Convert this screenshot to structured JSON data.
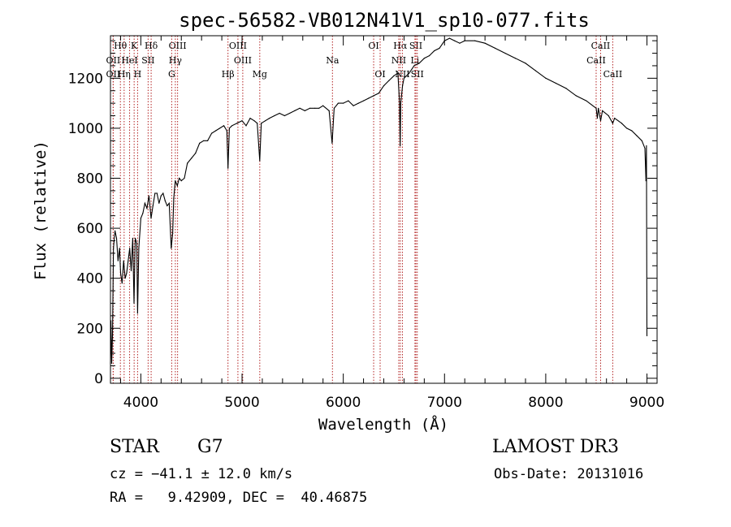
{
  "chart_data": {
    "type": "line",
    "title": "spec-56582-VB012N41V1_sp10-077.fits",
    "xlabel": "Wavelength (Å)",
    "ylabel": "Flux (relative)",
    "xlim": [
      3700,
      9100
    ],
    "ylim": [
      -20,
      1370
    ],
    "xticks": [
      4000,
      5000,
      6000,
      7000,
      8000,
      9000
    ],
    "yticks": [
      0,
      200,
      400,
      600,
      800,
      1000,
      1200
    ],
    "grid": false,
    "series": [
      {
        "name": "spectrum",
        "points": [
          [
            3700,
            60
          ],
          [
            3705,
            230
          ],
          [
            3712,
            60
          ],
          [
            3720,
            170
          ],
          [
            3730,
            520
          ],
          [
            3745,
            590
          ],
          [
            3760,
            560
          ],
          [
            3775,
            470
          ],
          [
            3790,
            520
          ],
          [
            3800,
            420
          ],
          [
            3815,
            380
          ],
          [
            3830,
            470
          ],
          [
            3845,
            400
          ],
          [
            3860,
            420
          ],
          [
            3875,
            470
          ],
          [
            3890,
            520
          ],
          [
            3905,
            430
          ],
          [
            3920,
            560
          ],
          [
            3933,
            300
          ],
          [
            3945,
            560
          ],
          [
            3960,
            540
          ],
          [
            3968,
            260
          ],
          [
            3980,
            520
          ],
          [
            4000,
            640
          ],
          [
            4020,
            660
          ],
          [
            4040,
            700
          ],
          [
            4060,
            680
          ],
          [
            4080,
            730
          ],
          [
            4101,
            640
          ],
          [
            4120,
            690
          ],
          [
            4140,
            740
          ],
          [
            4160,
            740
          ],
          [
            4180,
            700
          ],
          [
            4200,
            730
          ],
          [
            4220,
            740
          ],
          [
            4240,
            710
          ],
          [
            4260,
            690
          ],
          [
            4280,
            700
          ],
          [
            4300,
            520
          ],
          [
            4315,
            580
          ],
          [
            4325,
            720
          ],
          [
            4340,
            790
          ],
          [
            4360,
            770
          ],
          [
            4380,
            800
          ],
          [
            4400,
            790
          ],
          [
            4430,
            800
          ],
          [
            4460,
            860
          ],
          [
            4500,
            880
          ],
          [
            4540,
            900
          ],
          [
            4580,
            940
          ],
          [
            4620,
            950
          ],
          [
            4660,
            950
          ],
          [
            4700,
            980
          ],
          [
            4740,
            990
          ],
          [
            4780,
            1000
          ],
          [
            4820,
            1010
          ],
          [
            4850,
            990
          ],
          [
            4861,
            840
          ],
          [
            4875,
            1000
          ],
          [
            4900,
            1010
          ],
          [
            4950,
            1020
          ],
          [
            5000,
            1030
          ],
          [
            5040,
            1010
          ],
          [
            5080,
            1040
          ],
          [
            5120,
            1030
          ],
          [
            5150,
            1020
          ],
          [
            5175,
            870
          ],
          [
            5190,
            1020
          ],
          [
            5230,
            1030
          ],
          [
            5270,
            1040
          ],
          [
            5320,
            1050
          ],
          [
            5370,
            1060
          ],
          [
            5420,
            1050
          ],
          [
            5470,
            1060
          ],
          [
            5520,
            1070
          ],
          [
            5570,
            1080
          ],
          [
            5620,
            1070
          ],
          [
            5670,
            1080
          ],
          [
            5720,
            1080
          ],
          [
            5760,
            1080
          ],
          [
            5800,
            1090
          ],
          [
            5860,
            1070
          ],
          [
            5890,
            940
          ],
          [
            5910,
            1080
          ],
          [
            5950,
            1100
          ],
          [
            6000,
            1100
          ],
          [
            6050,
            1110
          ],
          [
            6100,
            1090
          ],
          [
            6150,
            1100
          ],
          [
            6200,
            1110
          ],
          [
            6250,
            1120
          ],
          [
            6300,
            1130
          ],
          [
            6350,
            1140
          ],
          [
            6400,
            1170
          ],
          [
            6450,
            1190
          ],
          [
            6500,
            1210
          ],
          [
            6540,
            1220
          ],
          [
            6556,
            1100
          ],
          [
            6562,
            930
          ],
          [
            6568,
            1100
          ],
          [
            6585,
            1170
          ],
          [
            6600,
            1200
          ],
          [
            6650,
            1220
          ],
          [
            6700,
            1250
          ],
          [
            6750,
            1260
          ],
          [
            6800,
            1280
          ],
          [
            6850,
            1290
          ],
          [
            6900,
            1310
          ],
          [
            6950,
            1320
          ],
          [
            7000,
            1350
          ],
          [
            7050,
            1360
          ],
          [
            7100,
            1350
          ],
          [
            7150,
            1340
          ],
          [
            7200,
            1350
          ],
          [
            7300,
            1350
          ],
          [
            7400,
            1340
          ],
          [
            7500,
            1320
          ],
          [
            7600,
            1300
          ],
          [
            7700,
            1280
          ],
          [
            7800,
            1260
          ],
          [
            7900,
            1230
          ],
          [
            8000,
            1200
          ],
          [
            8100,
            1180
          ],
          [
            8200,
            1160
          ],
          [
            8300,
            1130
          ],
          [
            8400,
            1110
          ],
          [
            8498,
            1080
          ],
          [
            8510,
            1040
          ],
          [
            8520,
            1080
          ],
          [
            8542,
            1030
          ],
          [
            8560,
            1070
          ],
          [
            8620,
            1050
          ],
          [
            8662,
            1020
          ],
          [
            8680,
            1040
          ],
          [
            8750,
            1020
          ],
          [
            8800,
            1000
          ],
          [
            8850,
            990
          ],
          [
            8900,
            970
          ],
          [
            8950,
            950
          ],
          [
            8980,
            920
          ],
          [
            8990,
            790
          ],
          [
            8995,
            930
          ],
          [
            9000,
            170
          ]
        ]
      }
    ],
    "lines": [
      {
        "label": "Hθ",
        "wl": 3798,
        "row": 0
      },
      {
        "label": "OII",
        "wl": 3727,
        "row": 1
      },
      {
        "label": "OII",
        "wl": 3727,
        "row": 2
      },
      {
        "label": "HeI",
        "wl": 3889,
        "row": 1
      },
      {
        "label": "Hη",
        "wl": 3835,
        "row": 2
      },
      {
        "label": "K",
        "wl": 3934,
        "row": 0
      },
      {
        "label": "SII",
        "wl": 4072,
        "row": 1
      },
      {
        "label": "H",
        "wl": 3968,
        "row": 2
      },
      {
        "label": "Hδ",
        "wl": 4102,
        "row": 0
      },
      {
        "label": "OIII",
        "wl": 4363,
        "row": 0
      },
      {
        "label": "Hγ",
        "wl": 4341,
        "row": 1
      },
      {
        "label": "G",
        "wl": 4305,
        "row": 2
      },
      {
        "label": "Hβ",
        "wl": 4861,
        "row": 2
      },
      {
        "label": "OIII",
        "wl": 4959,
        "row": 0
      },
      {
        "label": "OIII",
        "wl": 5007,
        "row": 1
      },
      {
        "label": "Mg",
        "wl": 5175,
        "row": 2
      },
      {
        "label": "Na",
        "wl": 5893,
        "row": 1
      },
      {
        "label": "OI",
        "wl": 6300,
        "row": 0
      },
      {
        "label": "OI",
        "wl": 6364,
        "row": 2
      },
      {
        "label": "Hα",
        "wl": 6563,
        "row": 0
      },
      {
        "label": "NII",
        "wl": 6548,
        "row": 1
      },
      {
        "label": "NII",
        "wl": 6584,
        "row": 2
      },
      {
        "label": "SII",
        "wl": 6717,
        "row": 0
      },
      {
        "label": "Li",
        "wl": 6708,
        "row": 1
      },
      {
        "label": "SII",
        "wl": 6731,
        "row": 2
      },
      {
        "label": "CaII",
        "wl": 8542,
        "row": 0
      },
      {
        "label": "CaII",
        "wl": 8498,
        "row": 1
      },
      {
        "label": "CaII",
        "wl": 8662,
        "row": 2
      }
    ]
  },
  "info": {
    "object_class": "STAR",
    "subclass": "G7",
    "survey": "LAMOST DR3",
    "cz": "cz = −41.1 ± 12.0 km/s",
    "obs_date": "Obs-Date: 20131016",
    "coords": "RA =   9.42909, DEC =  40.46875"
  }
}
